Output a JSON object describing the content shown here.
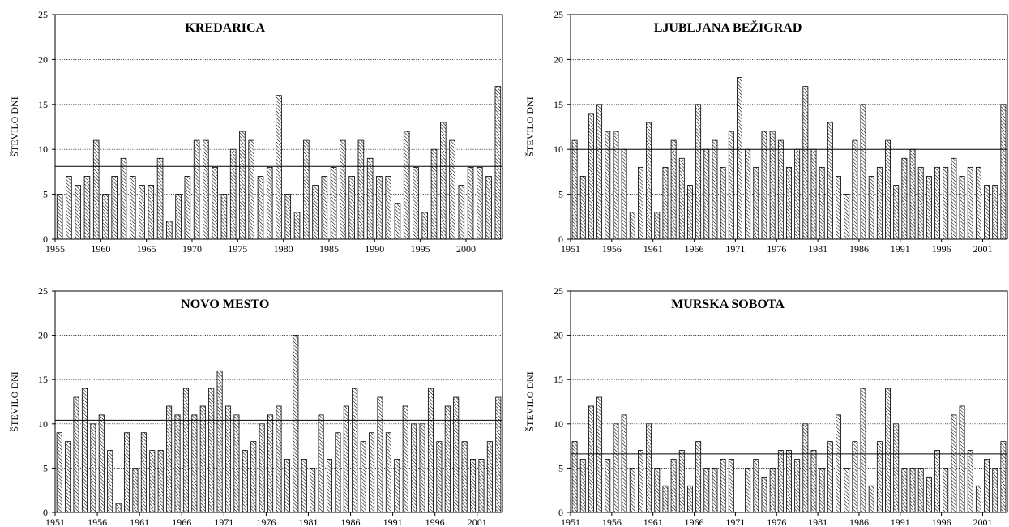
{
  "chart_data": [
    {
      "type": "bar",
      "title": "KREDARICA",
      "ylabel": "ŠTEVILO DNI",
      "xlabel": "",
      "ylim": [
        0,
        25
      ],
      "yticks": [
        0,
        5,
        10,
        15,
        20,
        25
      ],
      "x_start": 1955,
      "xtick_labels": [
        "1955",
        "1960",
        "1965",
        "1970",
        "1975",
        "1980",
        "1985",
        "1990",
        "1995",
        "2000"
      ],
      "values": [
        5,
        7,
        6,
        7,
        11,
        5,
        7,
        9,
        7,
        6,
        6,
        9,
        2,
        5,
        7,
        11,
        11,
        8,
        5,
        10,
        12,
        11,
        7,
        8,
        16,
        5,
        3,
        11,
        6,
        7,
        8,
        11,
        7,
        11,
        9,
        7,
        7,
        4,
        12,
        8,
        3,
        10,
        13,
        11,
        6,
        8,
        8,
        7,
        17
      ],
      "mean": 8.1,
      "grid": "horizontal dotted"
    },
    {
      "type": "bar",
      "title": "LJUBLJANA BEŽIGRAD",
      "ylabel": "ŠTEVILO DNI",
      "xlabel": "",
      "ylim": [
        0,
        25
      ],
      "yticks": [
        0,
        5,
        10,
        15,
        20,
        25
      ],
      "x_start": 1951,
      "xtick_labels": [
        "1951",
        "1956",
        "1961",
        "1966",
        "1971",
        "1976",
        "1981",
        "1986",
        "1991",
        "1996",
        "2001"
      ],
      "values": [
        11,
        7,
        14,
        15,
        12,
        12,
        10,
        3,
        8,
        13,
        3,
        8,
        11,
        9,
        6,
        15,
        10,
        11,
        8,
        12,
        18,
        10,
        8,
        12,
        12,
        11,
        8,
        10,
        17,
        10,
        8,
        13,
        7,
        5,
        11,
        15,
        7,
        8,
        11,
        6,
        9,
        10,
        8,
        7,
        8,
        8,
        9,
        7,
        8,
        8,
        6,
        6,
        15
      ],
      "mean": 10,
      "grid": "horizontal dotted"
    },
    {
      "type": "bar",
      "title": "NOVO MESTO",
      "ylabel": "ŠTEVILO DNI",
      "xlabel": "",
      "ylim": [
        0,
        25
      ],
      "yticks": [
        0,
        5,
        10,
        15,
        20,
        25
      ],
      "x_start": 1951,
      "xtick_labels": [
        "1951",
        "1956",
        "1961",
        "1966",
        "1971",
        "1976",
        "1981",
        "1986",
        "1991",
        "1996",
        "2001"
      ],
      "values": [
        9,
        8,
        13,
        14,
        10,
        11,
        7,
        1,
        9,
        5,
        9,
        7,
        7,
        12,
        11,
        14,
        11,
        12,
        14,
        16,
        12,
        11,
        7,
        8,
        10,
        11,
        12,
        6,
        20,
        6,
        5,
        11,
        6,
        9,
        12,
        14,
        8,
        9,
        13,
        9,
        6,
        12,
        10,
        10,
        14,
        8,
        12,
        13,
        8,
        6,
        6,
        8,
        13
      ],
      "mean": 10.4,
      "grid": "horizontal dotted"
    },
    {
      "type": "bar",
      "title": "MURSKA SOBOTA",
      "ylabel": "ŠTEVILO DNI",
      "xlabel": "",
      "ylim": [
        0,
        25
      ],
      "yticks": [
        0,
        5,
        10,
        15,
        20,
        25
      ],
      "x_start": 1951,
      "xtick_labels": [
        "1951",
        "1956",
        "1961",
        "1966",
        "1971",
        "1976",
        "1981",
        "1986",
        "1991",
        "1996",
        "2001"
      ],
      "values": [
        8,
        6,
        12,
        13,
        6,
        10,
        11,
        5,
        7,
        10,
        5,
        3,
        6,
        7,
        3,
        8,
        5,
        5,
        6,
        6,
        0,
        5,
        6,
        4,
        5,
        7,
        7,
        6,
        10,
        7,
        5,
        8,
        11,
        5,
        8,
        14,
        3,
        8,
        14,
        10,
        5,
        5,
        5,
        4,
        7,
        5,
        11,
        12,
        7,
        3,
        6,
        5,
        8
      ],
      "mean": 6.6,
      "grid": "horizontal dotted"
    }
  ]
}
